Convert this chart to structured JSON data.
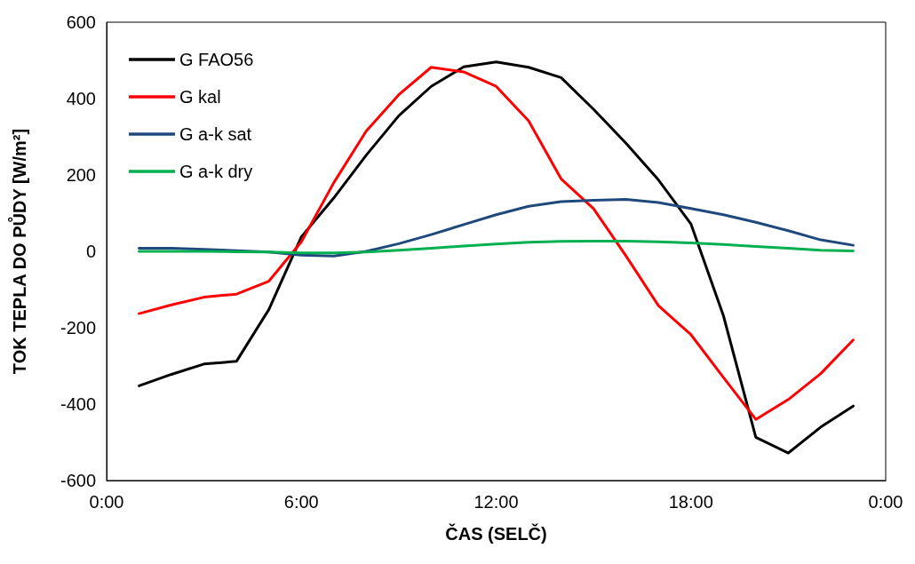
{
  "chart_data": {
    "type": "line",
    "xlabel": "ČAS (SELČ)",
    "ylabel": "TOK TEPLA DO PŮDY [W/m²]",
    "x": [
      1,
      2,
      3,
      4,
      5,
      6,
      7,
      8,
      9,
      10,
      11,
      12,
      13,
      14,
      15,
      16,
      17,
      18,
      19,
      20,
      21,
      22,
      23
    ],
    "series": [
      {
        "name": "G FAO56",
        "color": "#000000",
        "values": [
          -352,
          -322,
          -295,
          -288,
          -152,
          38,
          140,
          252,
          355,
          432,
          483,
          496,
          482,
          455,
          372,
          283,
          187,
          72,
          -168,
          -487,
          -528,
          -460,
          -405
        ]
      },
      {
        "name": "G kal",
        "color": "#ff0000",
        "values": [
          -163,
          -140,
          -120,
          -112,
          -78,
          25,
          180,
          315,
          410,
          482,
          470,
          432,
          342,
          190,
          112,
          -12,
          -142,
          -218,
          -330,
          -440,
          -388,
          -320,
          -232
        ]
      },
      {
        "name": "G a-k sat",
        "color": "#1f497d",
        "values": [
          8,
          8,
          5,
          2,
          -2,
          -10,
          -12,
          0,
          20,
          44,
          70,
          96,
          118,
          130,
          134,
          136,
          128,
          112,
          96,
          76,
          54,
          30,
          16
        ]
      },
      {
        "name": "G a-k dry",
        "color": "#00b050",
        "values": [
          0,
          0,
          0,
          -1,
          -2,
          -4,
          -4,
          -2,
          3,
          8,
          14,
          19,
          24,
          26,
          27,
          27,
          25,
          22,
          18,
          13,
          8,
          3,
          1
        ]
      }
    ],
    "xlim": [
      0,
      24
    ],
    "xticks": [
      {
        "value": 0,
        "label": "0:00"
      },
      {
        "value": 6,
        "label": "6:00"
      },
      {
        "value": 12,
        "label": "12:00"
      },
      {
        "value": 18,
        "label": "18:00"
      },
      {
        "value": 24,
        "label": "0:00"
      }
    ],
    "ylim": [
      -600,
      600
    ],
    "yticks": [
      -600,
      -400,
      -200,
      0,
      200,
      400,
      600
    ],
    "grid": false,
    "legend": "top left",
    "marker": "none",
    "line_style": "solid"
  }
}
